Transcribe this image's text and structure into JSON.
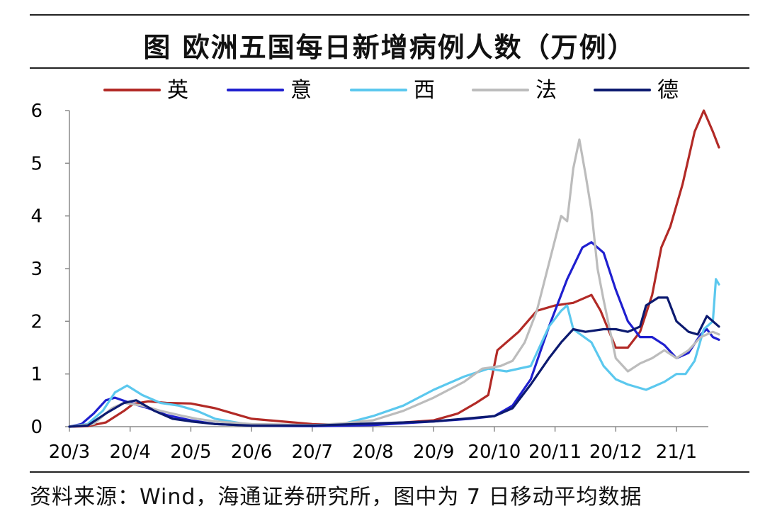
{
  "chart_data": {
    "type": "line",
    "title": "图  欧洲五国每日新增病例人数（万例）",
    "source": "资料来源：Wind，海通证券研究所，图中为 7 日移动平均数据",
    "categories": [
      "20/3",
      "20/4",
      "20/5",
      "20/6",
      "20/7",
      "20/8",
      "20/9",
      "20/10",
      "20/11",
      "20/12",
      "21/1"
    ],
    "ylim": [
      0,
      6
    ],
    "yticks": [
      0,
      1,
      2,
      3,
      4,
      5,
      6
    ],
    "legend_position": "top",
    "series": [
      {
        "name": "英",
        "color": "#b22a26",
        "points": [
          [
            0,
            0
          ],
          [
            0.3,
            0.01
          ],
          [
            0.6,
            0.08
          ],
          [
            0.9,
            0.3
          ],
          [
            1.05,
            0.43
          ],
          [
            1.3,
            0.48
          ],
          [
            1.6,
            0.45
          ],
          [
            2.0,
            0.44
          ],
          [
            2.4,
            0.35
          ],
          [
            2.7,
            0.25
          ],
          [
            3.0,
            0.15
          ],
          [
            3.5,
            0.1
          ],
          [
            4.0,
            0.05
          ],
          [
            4.5,
            0.04
          ],
          [
            5.0,
            0.05
          ],
          [
            5.5,
            0.08
          ],
          [
            6.0,
            0.12
          ],
          [
            6.4,
            0.25
          ],
          [
            6.7,
            0.45
          ],
          [
            6.9,
            0.6
          ],
          [
            7.05,
            1.45
          ],
          [
            7.2,
            1.6
          ],
          [
            7.4,
            1.8
          ],
          [
            7.7,
            2.2
          ],
          [
            8.0,
            2.3
          ],
          [
            8.3,
            2.35
          ],
          [
            8.6,
            2.5
          ],
          [
            8.75,
            2.2
          ],
          [
            9.0,
            1.5
          ],
          [
            9.2,
            1.5
          ],
          [
            9.4,
            1.8
          ],
          [
            9.6,
            2.5
          ],
          [
            9.75,
            3.4
          ],
          [
            9.9,
            3.8
          ],
          [
            10.1,
            4.6
          ],
          [
            10.3,
            5.6
          ],
          [
            10.45,
            6.0
          ],
          [
            10.6,
            5.6
          ],
          [
            10.7,
            5.3
          ]
        ]
      },
      {
        "name": "意",
        "color": "#1f1fcf",
        "points": [
          [
            0,
            0
          ],
          [
            0.2,
            0.05
          ],
          [
            0.4,
            0.25
          ],
          [
            0.6,
            0.5
          ],
          [
            0.75,
            0.55
          ],
          [
            1.0,
            0.45
          ],
          [
            1.3,
            0.35
          ],
          [
            1.6,
            0.22
          ],
          [
            2.0,
            0.12
          ],
          [
            2.4,
            0.05
          ],
          [
            3.0,
            0.02
          ],
          [
            4.0,
            0.01
          ],
          [
            5.0,
            0.03
          ],
          [
            6.0,
            0.1
          ],
          [
            6.6,
            0.15
          ],
          [
            7.0,
            0.2
          ],
          [
            7.3,
            0.4
          ],
          [
            7.6,
            0.9
          ],
          [
            7.9,
            1.9
          ],
          [
            8.2,
            2.8
          ],
          [
            8.45,
            3.4
          ],
          [
            8.6,
            3.5
          ],
          [
            8.8,
            3.3
          ],
          [
            9.0,
            2.6
          ],
          [
            9.2,
            2.0
          ],
          [
            9.4,
            1.7
          ],
          [
            9.6,
            1.7
          ],
          [
            9.8,
            1.55
          ],
          [
            10.0,
            1.3
          ],
          [
            10.2,
            1.4
          ],
          [
            10.4,
            1.75
          ],
          [
            10.5,
            1.85
          ],
          [
            10.6,
            1.7
          ],
          [
            10.7,
            1.65
          ]
        ]
      },
      {
        "name": "西",
        "color": "#5bc8ee",
        "points": [
          [
            0,
            0
          ],
          [
            0.3,
            0.05
          ],
          [
            0.55,
            0.3
          ],
          [
            0.75,
            0.65
          ],
          [
            0.95,
            0.78
          ],
          [
            1.2,
            0.6
          ],
          [
            1.5,
            0.45
          ],
          [
            1.8,
            0.4
          ],
          [
            2.1,
            0.3
          ],
          [
            2.4,
            0.15
          ],
          [
            3.0,
            0.03
          ],
          [
            4.0,
            0.02
          ],
          [
            4.5,
            0.05
          ],
          [
            5.0,
            0.2
          ],
          [
            5.5,
            0.4
          ],
          [
            6.0,
            0.7
          ],
          [
            6.5,
            0.95
          ],
          [
            6.9,
            1.1
          ],
          [
            7.2,
            1.05
          ],
          [
            7.6,
            1.15
          ],
          [
            7.9,
            1.9
          ],
          [
            8.1,
            2.2
          ],
          [
            8.2,
            2.3
          ],
          [
            8.3,
            1.85
          ],
          [
            8.6,
            1.6
          ],
          [
            8.8,
            1.15
          ],
          [
            9.0,
            0.9
          ],
          [
            9.2,
            0.8
          ],
          [
            9.5,
            0.7
          ],
          [
            9.8,
            0.85
          ],
          [
            10.0,
            1.0
          ],
          [
            10.15,
            1.0
          ],
          [
            10.3,
            1.25
          ],
          [
            10.45,
            1.85
          ],
          [
            10.6,
            2.0
          ],
          [
            10.65,
            2.8
          ],
          [
            10.7,
            2.7
          ]
        ]
      },
      {
        "name": "法",
        "color": "#bcbcbc",
        "points": [
          [
            0,
            0
          ],
          [
            0.4,
            0.05
          ],
          [
            0.7,
            0.35
          ],
          [
            0.9,
            0.45
          ],
          [
            1.2,
            0.4
          ],
          [
            1.5,
            0.3
          ],
          [
            1.8,
            0.22
          ],
          [
            2.1,
            0.15
          ],
          [
            2.4,
            0.1
          ],
          [
            3.0,
            0.05
          ],
          [
            4.0,
            0.03
          ],
          [
            4.5,
            0.06
          ],
          [
            5.0,
            0.12
          ],
          [
            5.5,
            0.3
          ],
          [
            6.0,
            0.55
          ],
          [
            6.5,
            0.85
          ],
          [
            6.8,
            1.1
          ],
          [
            7.1,
            1.15
          ],
          [
            7.3,
            1.25
          ],
          [
            7.5,
            1.6
          ],
          [
            7.7,
            2.2
          ],
          [
            7.9,
            3.1
          ],
          [
            8.1,
            4.0
          ],
          [
            8.2,
            3.9
          ],
          [
            8.3,
            4.9
          ],
          [
            8.4,
            5.45
          ],
          [
            8.5,
            4.8
          ],
          [
            8.6,
            4.1
          ],
          [
            8.7,
            3.0
          ],
          [
            8.8,
            2.4
          ],
          [
            9.0,
            1.3
          ],
          [
            9.2,
            1.05
          ],
          [
            9.4,
            1.2
          ],
          [
            9.6,
            1.3
          ],
          [
            9.8,
            1.45
          ],
          [
            10.0,
            1.3
          ],
          [
            10.2,
            1.45
          ],
          [
            10.4,
            1.7
          ],
          [
            10.6,
            1.8
          ],
          [
            10.7,
            1.75
          ]
        ]
      },
      {
        "name": "德",
        "color": "#0c1a70",
        "points": [
          [
            0,
            0
          ],
          [
            0.3,
            0.02
          ],
          [
            0.6,
            0.25
          ],
          [
            0.9,
            0.45
          ],
          [
            1.1,
            0.5
          ],
          [
            1.4,
            0.3
          ],
          [
            1.7,
            0.15
          ],
          [
            2.0,
            0.1
          ],
          [
            2.4,
            0.05
          ],
          [
            3.0,
            0.02
          ],
          [
            4.0,
            0.02
          ],
          [
            5.0,
            0.06
          ],
          [
            6.0,
            0.1
          ],
          [
            7.0,
            0.2
          ],
          [
            7.3,
            0.35
          ],
          [
            7.6,
            0.8
          ],
          [
            7.9,
            1.3
          ],
          [
            8.1,
            1.6
          ],
          [
            8.3,
            1.85
          ],
          [
            8.5,
            1.8
          ],
          [
            8.8,
            1.85
          ],
          [
            9.0,
            1.85
          ],
          [
            9.2,
            1.8
          ],
          [
            9.4,
            1.9
          ],
          [
            9.5,
            2.3
          ],
          [
            9.7,
            2.45
          ],
          [
            9.85,
            2.45
          ],
          [
            10.0,
            2.0
          ],
          [
            10.2,
            1.8
          ],
          [
            10.35,
            1.75
          ],
          [
            10.5,
            2.1
          ],
          [
            10.6,
            2.0
          ],
          [
            10.7,
            1.9
          ]
        ]
      }
    ]
  }
}
